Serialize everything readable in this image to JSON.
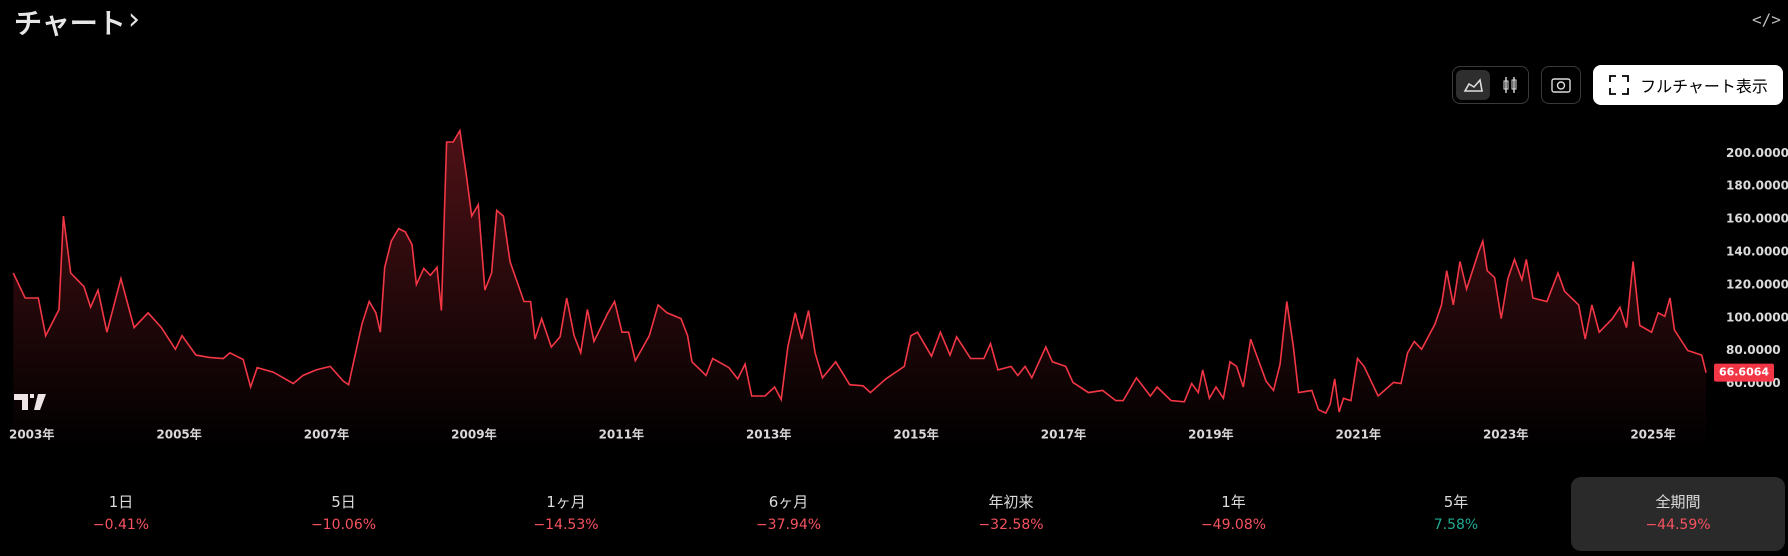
{
  "header": {
    "title": "チャート"
  },
  "toolbar": {
    "full_chart": "フルチャート表示"
  },
  "chart_data": {
    "type": "area",
    "color": "#f23645",
    "x": [
      2002.75,
      2002.91,
      2003.09,
      2003.19,
      2003.37,
      2003.43,
      2003.53,
      2003.71,
      2003.8,
      2003.9,
      2004.02,
      2004.21,
      2004.39,
      2004.58,
      2004.76,
      2004.95,
      2005.04,
      2005.23,
      2005.41,
      2005.6,
      2005.69,
      2005.87,
      2005.97,
      2006.06,
      2006.28,
      2006.55,
      2006.68,
      2006.86,
      2007.05,
      2007.23,
      2007.3,
      2007.48,
      2007.58,
      2007.67,
      2007.73,
      2007.79,
      2007.88,
      2007.98,
      2008.07,
      2008.16,
      2008.22,
      2008.32,
      2008.41,
      2008.5,
      2008.56,
      2008.63,
      2008.72,
      2008.81,
      2008.9,
      2008.97,
      2009.06,
      2009.15,
      2009.24,
      2009.31,
      2009.4,
      2009.49,
      2009.68,
      2009.77,
      2009.83,
      2009.92,
      2010.05,
      2010.17,
      2010.26,
      2010.36,
      2010.45,
      2010.54,
      2010.63,
      2010.82,
      2010.91,
      2011.01,
      2011.1,
      2011.19,
      2011.38,
      2011.5,
      2011.62,
      2011.81,
      2011.9,
      2011.96,
      2012.15,
      2012.24,
      2012.46,
      2012.58,
      2012.68,
      2012.77,
      2012.95,
      2013.08,
      2013.17,
      2013.26,
      2013.36,
      2013.45,
      2013.54,
      2013.63,
      2013.73,
      2013.91,
      2014.1,
      2014.28,
      2014.38,
      2014.59,
      2014.84,
      2014.93,
      2015.02,
      2015.21,
      2015.33,
      2015.46,
      2015.55,
      2015.74,
      2015.92,
      2016.01,
      2016.11,
      2016.29,
      2016.38,
      2016.48,
      2016.57,
      2016.76,
      2016.85,
      2017.03,
      2017.13,
      2017.34,
      2017.53,
      2017.71,
      2017.81,
      2017.99,
      2018.18,
      2018.27,
      2018.46,
      2018.64,
      2018.74,
      2018.83,
      2018.89,
      2018.98,
      2019.07,
      2019.17,
      2019.26,
      2019.35,
      2019.44,
      2019.54,
      2019.75,
      2019.85,
      2019.94,
      2020.03,
      2020.12,
      2020.19,
      2020.37,
      2020.46,
      2020.56,
      2020.62,
      2020.68,
      2020.74,
      2020.8,
      2020.9,
      2020.99,
      2021.08,
      2021.27,
      2021.48,
      2021.58,
      2021.67,
      2021.76,
      2021.86,
      2022.04,
      2022.13,
      2022.2,
      2022.29,
      2022.38,
      2022.47,
      2022.63,
      2022.69,
      2022.75,
      2022.85,
      2022.94,
      2023.03,
      2023.12,
      2023.22,
      2023.28,
      2023.37,
      2023.56,
      2023.71,
      2023.8,
      2023.99,
      2024.08,
      2024.17,
      2024.27,
      2024.45,
      2024.55,
      2024.64,
      2024.73,
      2024.82,
      2024.98,
      2025.07,
      2025.16,
      2025.23,
      2025.29,
      2025.47,
      2025.66,
      2025.72
    ],
    "values": [
      127.2,
      112.0,
      112.0,
      89.1,
      105.0,
      161.9,
      127.2,
      118.9,
      106.4,
      116.8,
      91.2,
      123.8,
      94.0,
      103.0,
      94.0,
      80.8,
      89.1,
      77.3,
      75.9,
      75.2,
      78.7,
      74.6,
      57.9,
      69.7,
      66.9,
      60.0,
      64.9,
      68.3,
      70.4,
      61.4,
      59.3,
      96.0,
      109.9,
      103.0,
      91.2,
      130.7,
      146.6,
      154.2,
      152.2,
      144.5,
      120.3,
      130.0,
      125.8,
      130.7,
      104.4,
      206.9,
      206.9,
      213.8,
      186.1,
      161.9,
      168.8,
      116.8,
      127.2,
      165.3,
      161.9,
      134.2,
      109.9,
      109.9,
      87.0,
      99.5,
      82.2,
      88.4,
      112.0,
      89.1,
      78.7,
      105.0,
      85.6,
      103.0,
      109.9,
      91.2,
      91.2,
      73.9,
      89.1,
      107.8,
      103.0,
      99.5,
      89.1,
      73.2,
      64.9,
      75.2,
      69.7,
      62.8,
      71.8,
      52.4,
      52.4,
      57.9,
      50.3,
      82.2,
      103.0,
      87.0,
      104.4,
      78.7,
      63.5,
      73.2,
      59.3,
      58.6,
      54.5,
      62.8,
      70.4,
      89.1,
      91.2,
      76.6,
      91.2,
      77.3,
      88.4,
      75.2,
      75.2,
      84.3,
      68.3,
      70.4,
      64.9,
      70.4,
      63.5,
      82.2,
      73.2,
      70.4,
      60.7,
      54.5,
      55.8,
      49.6,
      49.6,
      63.5,
      52.4,
      57.9,
      49.6,
      48.9,
      60.0,
      54.5,
      68.3,
      51.0,
      57.9,
      51.0,
      73.2,
      70.4,
      57.9,
      87.0,
      61.4,
      55.8,
      71.8,
      109.9,
      82.2,
      54.5,
      55.8,
      44.1,
      42.0,
      47.5,
      62.8,
      42.7,
      51.0,
      49.6,
      75.2,
      70.4,
      52.4,
      60.7,
      60.0,
      78.7,
      85.6,
      80.8,
      96.0,
      107.8,
      128.6,
      107.8,
      134.2,
      117.5,
      139.7,
      146.6,
      128.6,
      124.4,
      99.5,
      123.8,
      135.5,
      123.1,
      135.5,
      112.0,
      109.9,
      127.2,
      116.1,
      107.8,
      87.0,
      107.8,
      91.2,
      99.5,
      106.4,
      94.0,
      134.2,
      95.3,
      91.2,
      103.0,
      100.9,
      112.0,
      92.6,
      80.1,
      77.3,
      66.6064
    ],
    "xlim": [
      2002.57,
      2025.8
    ],
    "xticks": [
      {
        "value": 2003,
        "label": "2003年"
      },
      {
        "value": 2005,
        "label": "2005年"
      },
      {
        "value": 2007,
        "label": "2007年"
      },
      {
        "value": 2009,
        "label": "2009年"
      },
      {
        "value": 2011,
        "label": "2011年"
      },
      {
        "value": 2013,
        "label": "2013年"
      },
      {
        "value": 2015,
        "label": "2015年"
      },
      {
        "value": 2017,
        "label": "2017年"
      },
      {
        "value": 2019,
        "label": "2019年"
      },
      {
        "value": 2021,
        "label": "2021年"
      },
      {
        "value": 2023,
        "label": "2023年"
      },
      {
        "value": 2025,
        "label": "2025年"
      }
    ],
    "ylim": [
      36,
      216
    ],
    "yticks": [
      {
        "value": 60,
        "label": "60.0000"
      },
      {
        "value": 80,
        "label": "80.0000"
      },
      {
        "value": 100,
        "label": "100.0000"
      },
      {
        "value": 120,
        "label": "120.0000"
      },
      {
        "value": 140,
        "label": "140.0000"
      },
      {
        "value": 160,
        "label": "160.0000"
      },
      {
        "value": 180,
        "label": "180.0000"
      },
      {
        "value": 200,
        "label": "200.0000"
      }
    ]
  },
  "periods": [
    {
      "label": "1日",
      "change": "−0.41%",
      "color": "#f7525f"
    },
    {
      "label": "5日",
      "change": "−10.06%",
      "color": "#f7525f"
    },
    {
      "label": "1ヶ月",
      "change": "−14.53%",
      "color": "#f7525f"
    },
    {
      "label": "6ヶ月",
      "change": "−37.94%",
      "color": "#f7525f"
    },
    {
      "label": "年初来",
      "change": "−32.58%",
      "color": "#f7525f"
    },
    {
      "label": "1年",
      "change": "−49.08%",
      "color": "#f7525f"
    },
    {
      "label": "5年",
      "change": "7.58%",
      "color": "#22ab94"
    },
    {
      "label": "全期間",
      "change": "−44.59%",
      "color": "#f7525f",
      "selected": true
    }
  ]
}
